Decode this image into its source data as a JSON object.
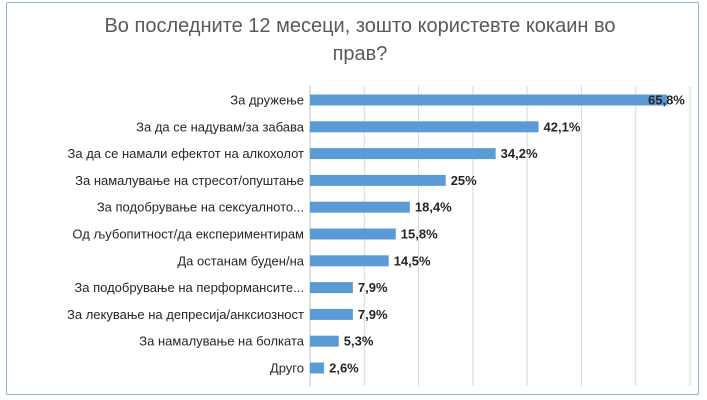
{
  "chart_data": {
    "type": "bar",
    "orientation": "horizontal",
    "title": "Во последните 12 месеци, зошто користевте кокаин во прав?",
    "categories": [
      "За дружење",
      "За да се надувам/за забава",
      "За да се намали ефектот на алкохолот",
      "За намалување на стресот/опуштање",
      "За подобрување на сексуалното...",
      "Од љубопитност/да експериментирам",
      "Да останам буден/на",
      "За подобрување на перформансите...",
      "За лекување на депресија/анксиозност",
      "За намалување на болката",
      "Друго"
    ],
    "values": [
      65.8,
      42.1,
      34.2,
      25,
      18.4,
      15.8,
      14.5,
      7.9,
      7.9,
      5.3,
      2.6
    ],
    "value_labels": [
      "65,8%",
      "42,1%",
      "34,2%",
      "25%",
      "18,4%",
      "15,8%",
      "14,5%",
      "7,9%",
      "7,9%",
      "5,3%",
      "2,6%"
    ],
    "xlim": [
      0,
      70
    ],
    "grid": "vertical",
    "bar_color": "#5b9bd5",
    "grid_color": "#d9d9d9"
  }
}
